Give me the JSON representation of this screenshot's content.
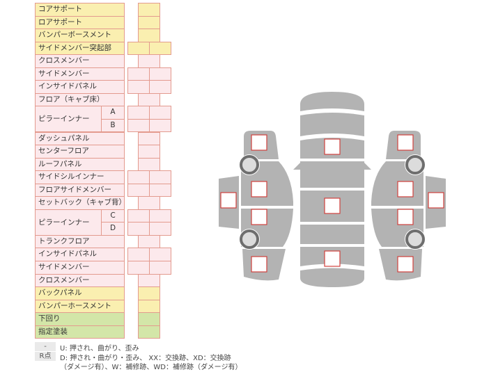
{
  "rows": [
    {
      "label": "コアサポート",
      "color": "y",
      "cols": 1
    },
    {
      "label": "ロアサポート",
      "color": "y",
      "cols": 1
    },
    {
      "label": "バンパーボースメント",
      "color": "y",
      "cols": 1
    },
    {
      "label": "サイドメンバー突起部",
      "color": "y",
      "cols": 2
    },
    {
      "label": "クロスメンバー",
      "color": "p",
      "cols": 1
    },
    {
      "label": "サイドメンバー",
      "color": "p",
      "cols": 2
    },
    {
      "label": "インサイドパネル",
      "color": "p",
      "cols": 2
    },
    {
      "label": "フロア（キャブ床）",
      "color": "p",
      "cols": 1
    },
    {
      "label": "ピラーインナー",
      "sub": "A",
      "color": "p",
      "cols": 2
    },
    {
      "label": "",
      "sub": "B",
      "color": "p",
      "cols": 2
    },
    {
      "label": "ダッシュパネル",
      "color": "p",
      "cols": 1
    },
    {
      "label": "センターフロア",
      "color": "p",
      "cols": 1
    },
    {
      "label": "ルーフパネル",
      "color": "p",
      "cols": 1
    },
    {
      "label": "サイドシルインナー",
      "color": "p",
      "cols": 2
    },
    {
      "label": "フロアサイドメンバー",
      "color": "p",
      "cols": 2
    },
    {
      "label": "セットバック（キャブ背）",
      "color": "p",
      "cols": 1
    },
    {
      "label": "ピラーインナー",
      "sub": "C",
      "color": "p",
      "cols": 2
    },
    {
      "label": "",
      "sub": "D",
      "color": "p",
      "cols": 2
    },
    {
      "label": "トランクフロア",
      "color": "p",
      "cols": 1
    },
    {
      "label": "インサイドパネル",
      "color": "p",
      "cols": 2
    },
    {
      "label": "サイドメンバー",
      "color": "p",
      "cols": 2
    },
    {
      "label": "クロスメンバー",
      "color": "p",
      "cols": 1
    },
    {
      "label": "バックパネル",
      "color": "y",
      "cols": 1
    },
    {
      "label": "バンパーホースメント",
      "color": "y",
      "cols": 1
    },
    {
      "label": "下回り",
      "color": "g",
      "cols": 1
    },
    {
      "label": "指定塗装",
      "color": "g",
      "cols": 1
    }
  ],
  "legend": {
    "dash_key": "-",
    "dash_text": "U: 押され、曲がり、歪み",
    "r_key": "R点",
    "r_text_1": "D: 押され・曲がり・歪み、 XX：交換跡、XD：交換跡",
    "r_text_2": "（ダメージ有）、W：補修跡、WD：補修跡（ダメージ有）"
  },
  "colors": {
    "panel": "#b3b3b3",
    "box_border": "#d0403c",
    "yellow": "#faefb0",
    "pink": "#fce9ec",
    "green": "#d3e6a8"
  }
}
